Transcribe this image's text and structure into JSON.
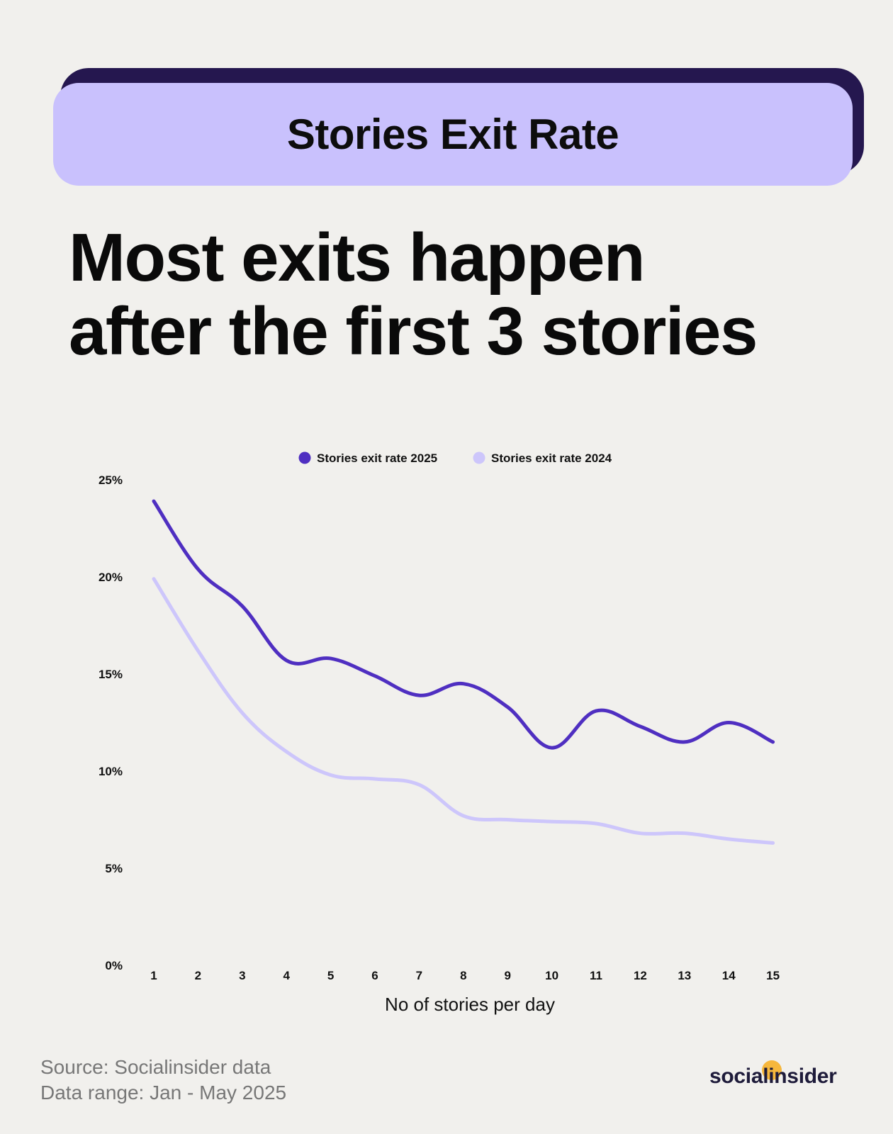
{
  "banner": {
    "title": "Stories Exit Rate"
  },
  "headline": {
    "line1": "Most exits happen",
    "line2": "after the first 3 stories"
  },
  "colors": {
    "series_2025": "#4f2fc1",
    "series_2024": "#cdc6fb",
    "banner_bg": "#c9c1fd",
    "banner_shadow": "#25174f",
    "page_bg": "#f1f0ed"
  },
  "chart_data": {
    "type": "line",
    "x": [
      1,
      2,
      3,
      4,
      5,
      6,
      7,
      8,
      9,
      10,
      11,
      12,
      13,
      14,
      15
    ],
    "x_tick_labels": [
      "1",
      "2",
      "3",
      "4",
      "5",
      "6",
      "7",
      "8",
      "9",
      "10",
      "11",
      "12",
      "13",
      "14",
      "15"
    ],
    "y_tick_labels": [
      "0%",
      "5%",
      "10%",
      "15%",
      "20%",
      "25%"
    ],
    "y_ticks": [
      0,
      5,
      10,
      15,
      20,
      25
    ],
    "ylim": [
      0,
      25
    ],
    "xlabel": "No of stories per day",
    "ylabel": "",
    "grid": false,
    "legend_position": "top-center",
    "series": [
      {
        "name": "Stories exit rate 2025",
        "color": "#4f2fc1",
        "values": [
          23.9,
          20.4,
          18.5,
          15.7,
          15.8,
          14.9,
          13.9,
          14.5,
          13.3,
          11.2,
          13.1,
          12.3,
          11.5,
          12.5,
          11.5
        ]
      },
      {
        "name": "Stories exit rate 2024",
        "color": "#cdc6fb",
        "values": [
          19.9,
          16.2,
          13.0,
          11.0,
          9.8,
          9.6,
          9.3,
          7.7,
          7.5,
          7.4,
          7.3,
          6.8,
          6.8,
          6.5,
          6.3
        ]
      }
    ]
  },
  "footer": {
    "source": "Source: Socialinsider data",
    "range": "Data range: Jan - May 2025"
  },
  "logo": {
    "text": "socialinsider"
  }
}
